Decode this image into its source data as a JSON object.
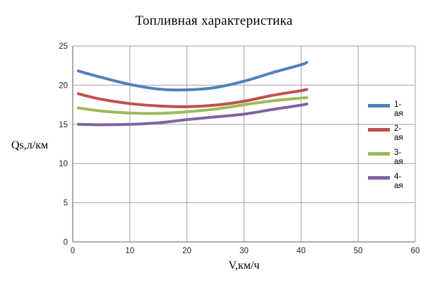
{
  "chart_data": {
    "type": "line",
    "title": "Топливная характеристика",
    "xlabel": "V,км/ч",
    "ylabel": "Qs,л/км",
    "xlim": [
      0,
      60
    ],
    "ylim": [
      0,
      25
    ],
    "xticks": [
      0,
      10,
      20,
      30,
      40,
      50,
      60
    ],
    "yticks": [
      0,
      5,
      10,
      15,
      20,
      25
    ],
    "grid": true,
    "legend_position": "right-inside",
    "grid_color": "#a3a3a3",
    "axis_color": "#808080",
    "tick_text_color": "#262626",
    "line_width": 4,
    "series": [
      {
        "name": "1-ая",
        "color": "#4F81BD",
        "points": [
          [
            1,
            21.8
          ],
          [
            5,
            21.0
          ],
          [
            10,
            20.1
          ],
          [
            15,
            19.5
          ],
          [
            20,
            19.4
          ],
          [
            25,
            19.7
          ],
          [
            30,
            20.5
          ],
          [
            35,
            21.6
          ],
          [
            40,
            22.6
          ],
          [
            41,
            22.9
          ]
        ]
      },
      {
        "name": "2-ая",
        "color": "#C0504D",
        "points": [
          [
            1,
            18.9
          ],
          [
            5,
            18.2
          ],
          [
            10,
            17.65
          ],
          [
            15,
            17.35
          ],
          [
            20,
            17.25
          ],
          [
            25,
            17.45
          ],
          [
            30,
            17.95
          ],
          [
            35,
            18.7
          ],
          [
            40,
            19.3
          ],
          [
            41,
            19.45
          ]
        ]
      },
      {
        "name": "3-ая",
        "color": "#9BBB59",
        "points": [
          [
            1,
            17.1
          ],
          [
            5,
            16.7
          ],
          [
            10,
            16.45
          ],
          [
            15,
            16.4
          ],
          [
            20,
            16.6
          ],
          [
            25,
            16.95
          ],
          [
            30,
            17.5
          ],
          [
            35,
            18.0
          ],
          [
            40,
            18.35
          ],
          [
            41,
            18.4
          ]
        ]
      },
      {
        "name": "4-ая",
        "color": "#8064A2",
        "points": [
          [
            1,
            15.0
          ],
          [
            5,
            14.95
          ],
          [
            10,
            15.0
          ],
          [
            15,
            15.2
          ],
          [
            20,
            15.6
          ],
          [
            25,
            15.95
          ],
          [
            30,
            16.3
          ],
          [
            35,
            16.9
          ],
          [
            40,
            17.45
          ],
          [
            41,
            17.6
          ]
        ]
      }
    ]
  }
}
